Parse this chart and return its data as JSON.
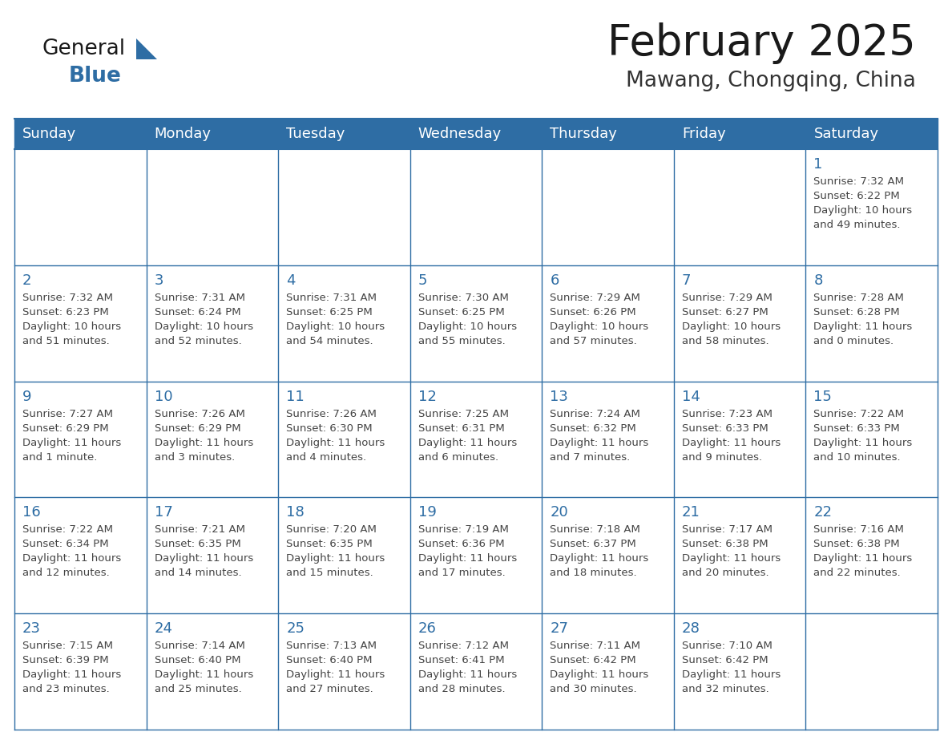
{
  "title": "February 2025",
  "subtitle": "Mawang, Chongqing, China",
  "days_of_week": [
    "Sunday",
    "Monday",
    "Tuesday",
    "Wednesday",
    "Thursday",
    "Friday",
    "Saturday"
  ],
  "header_bg": "#2E6DA4",
  "header_text": "#FFFFFF",
  "cell_bg": "#FFFFFF",
  "border_color": "#2E6DA4",
  "day_number_color": "#2E6DA4",
  "cell_text_color": "#444444",
  "title_color": "#1a1a1a",
  "subtitle_color": "#333333",
  "logo_general_color": "#1a1a1a",
  "logo_blue_color": "#2E6DA4",
  "weeks": [
    [
      {
        "day": null,
        "info": ""
      },
      {
        "day": null,
        "info": ""
      },
      {
        "day": null,
        "info": ""
      },
      {
        "day": null,
        "info": ""
      },
      {
        "day": null,
        "info": ""
      },
      {
        "day": null,
        "info": ""
      },
      {
        "day": 1,
        "info": "Sunrise: 7:32 AM\nSunset: 6:22 PM\nDaylight: 10 hours\nand 49 minutes."
      }
    ],
    [
      {
        "day": 2,
        "info": "Sunrise: 7:32 AM\nSunset: 6:23 PM\nDaylight: 10 hours\nand 51 minutes."
      },
      {
        "day": 3,
        "info": "Sunrise: 7:31 AM\nSunset: 6:24 PM\nDaylight: 10 hours\nand 52 minutes."
      },
      {
        "day": 4,
        "info": "Sunrise: 7:31 AM\nSunset: 6:25 PM\nDaylight: 10 hours\nand 54 minutes."
      },
      {
        "day": 5,
        "info": "Sunrise: 7:30 AM\nSunset: 6:25 PM\nDaylight: 10 hours\nand 55 minutes."
      },
      {
        "day": 6,
        "info": "Sunrise: 7:29 AM\nSunset: 6:26 PM\nDaylight: 10 hours\nand 57 minutes."
      },
      {
        "day": 7,
        "info": "Sunrise: 7:29 AM\nSunset: 6:27 PM\nDaylight: 10 hours\nand 58 minutes."
      },
      {
        "day": 8,
        "info": "Sunrise: 7:28 AM\nSunset: 6:28 PM\nDaylight: 11 hours\nand 0 minutes."
      }
    ],
    [
      {
        "day": 9,
        "info": "Sunrise: 7:27 AM\nSunset: 6:29 PM\nDaylight: 11 hours\nand 1 minute."
      },
      {
        "day": 10,
        "info": "Sunrise: 7:26 AM\nSunset: 6:29 PM\nDaylight: 11 hours\nand 3 minutes."
      },
      {
        "day": 11,
        "info": "Sunrise: 7:26 AM\nSunset: 6:30 PM\nDaylight: 11 hours\nand 4 minutes."
      },
      {
        "day": 12,
        "info": "Sunrise: 7:25 AM\nSunset: 6:31 PM\nDaylight: 11 hours\nand 6 minutes."
      },
      {
        "day": 13,
        "info": "Sunrise: 7:24 AM\nSunset: 6:32 PM\nDaylight: 11 hours\nand 7 minutes."
      },
      {
        "day": 14,
        "info": "Sunrise: 7:23 AM\nSunset: 6:33 PM\nDaylight: 11 hours\nand 9 minutes."
      },
      {
        "day": 15,
        "info": "Sunrise: 7:22 AM\nSunset: 6:33 PM\nDaylight: 11 hours\nand 10 minutes."
      }
    ],
    [
      {
        "day": 16,
        "info": "Sunrise: 7:22 AM\nSunset: 6:34 PM\nDaylight: 11 hours\nand 12 minutes."
      },
      {
        "day": 17,
        "info": "Sunrise: 7:21 AM\nSunset: 6:35 PM\nDaylight: 11 hours\nand 14 minutes."
      },
      {
        "day": 18,
        "info": "Sunrise: 7:20 AM\nSunset: 6:35 PM\nDaylight: 11 hours\nand 15 minutes."
      },
      {
        "day": 19,
        "info": "Sunrise: 7:19 AM\nSunset: 6:36 PM\nDaylight: 11 hours\nand 17 minutes."
      },
      {
        "day": 20,
        "info": "Sunrise: 7:18 AM\nSunset: 6:37 PM\nDaylight: 11 hours\nand 18 minutes."
      },
      {
        "day": 21,
        "info": "Sunrise: 7:17 AM\nSunset: 6:38 PM\nDaylight: 11 hours\nand 20 minutes."
      },
      {
        "day": 22,
        "info": "Sunrise: 7:16 AM\nSunset: 6:38 PM\nDaylight: 11 hours\nand 22 minutes."
      }
    ],
    [
      {
        "day": 23,
        "info": "Sunrise: 7:15 AM\nSunset: 6:39 PM\nDaylight: 11 hours\nand 23 minutes."
      },
      {
        "day": 24,
        "info": "Sunrise: 7:14 AM\nSunset: 6:40 PM\nDaylight: 11 hours\nand 25 minutes."
      },
      {
        "day": 25,
        "info": "Sunrise: 7:13 AM\nSunset: 6:40 PM\nDaylight: 11 hours\nand 27 minutes."
      },
      {
        "day": 26,
        "info": "Sunrise: 7:12 AM\nSunset: 6:41 PM\nDaylight: 11 hours\nand 28 minutes."
      },
      {
        "day": 27,
        "info": "Sunrise: 7:11 AM\nSunset: 6:42 PM\nDaylight: 11 hours\nand 30 minutes."
      },
      {
        "day": 28,
        "info": "Sunrise: 7:10 AM\nSunset: 6:42 PM\nDaylight: 11 hours\nand 32 minutes."
      },
      {
        "day": null,
        "info": ""
      }
    ]
  ]
}
